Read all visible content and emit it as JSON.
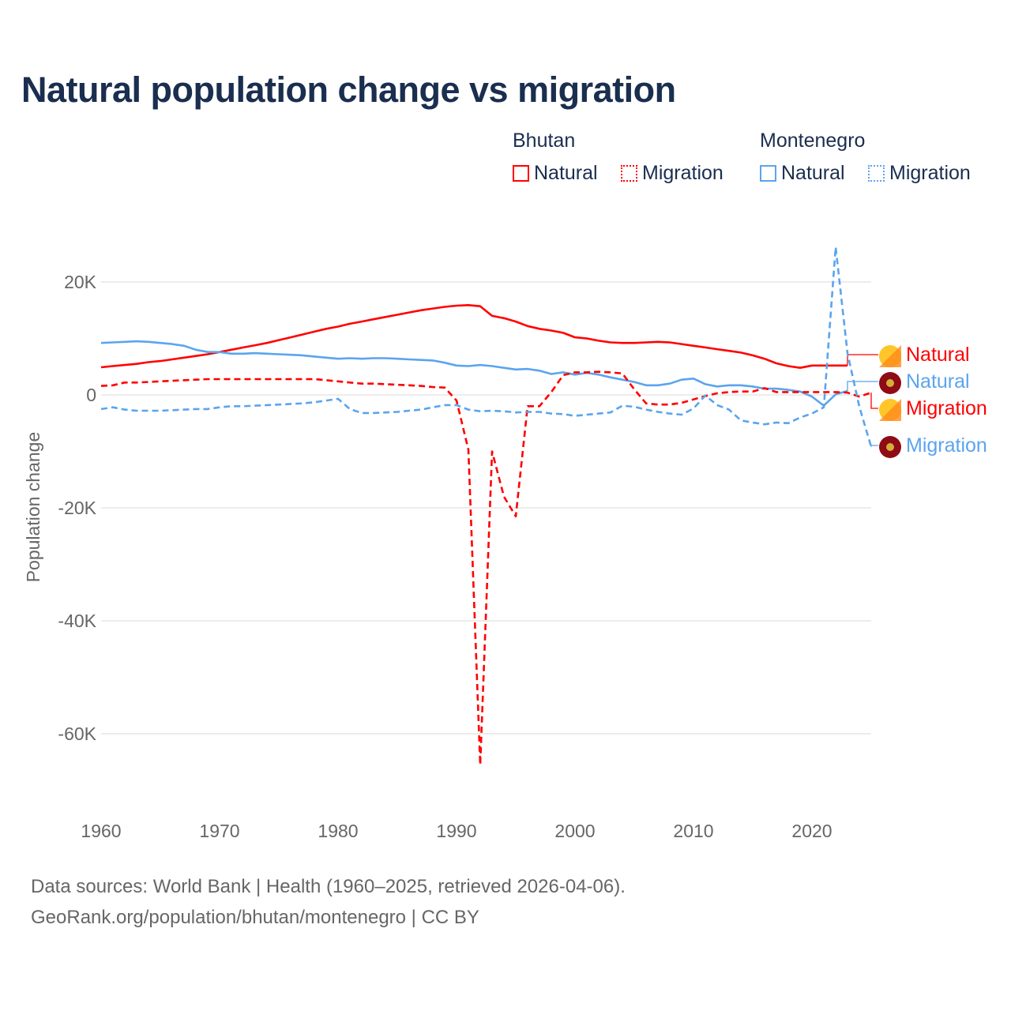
{
  "chart_data": {
    "type": "line",
    "title": "Natural population change vs migration",
    "ylabel": "Population change",
    "xlabel": "",
    "xlim": [
      1960,
      2025
    ],
    "ylim": [
      -65.5,
      26.5
    ],
    "x_ticks": [
      {
        "v": 1960,
        "label": "1960"
      },
      {
        "v": 1970,
        "label": "1970"
      },
      {
        "v": 1980,
        "label": "1980"
      },
      {
        "v": 1990,
        "label": "1990"
      },
      {
        "v": 2000,
        "label": "2000"
      },
      {
        "v": 2010,
        "label": "2010"
      },
      {
        "v": 2020,
        "label": "2020"
      }
    ],
    "y_ticks": [
      {
        "v": 20,
        "label": "20K"
      },
      {
        "v": 0,
        "label": "0"
      },
      {
        "v": -20,
        "label": "-20K"
      },
      {
        "v": -40,
        "label": "-40K"
      },
      {
        "v": -60,
        "label": "-60K"
      }
    ],
    "grid": true,
    "units": "thousands",
    "start_year": 1960,
    "series": [
      {
        "name": "Bhutan Natural",
        "country": "Bhutan",
        "kind": "Natural",
        "label": "Natural",
        "color": "#ff0000",
        "dashed": false,
        "values": [
          4.9,
          5.1,
          5.3,
          5.5,
          5.8,
          6.0,
          6.3,
          6.6,
          6.9,
          7.2,
          7.6,
          8.0,
          8.4,
          8.8,
          9.2,
          9.7,
          10.2,
          10.7,
          11.2,
          11.7,
          12.1,
          12.6,
          13.0,
          13.4,
          13.8,
          14.2,
          14.6,
          15.0,
          15.3,
          15.6,
          15.8,
          15.9,
          15.7,
          14.0,
          13.6,
          13.0,
          12.2,
          11.7,
          11.4,
          11.0,
          10.2,
          10.0,
          9.6,
          9.3,
          9.2,
          9.2,
          9.3,
          9.4,
          9.3,
          9.0,
          8.7,
          8.4,
          8.1,
          7.8,
          7.5,
          7.0,
          6.4,
          5.6,
          5.1,
          4.8,
          5.2,
          5.2,
          5.2,
          5.2
        ]
      },
      {
        "name": "Montenegro Natural",
        "country": "Montenegro",
        "kind": "Natural",
        "label": "Natural",
        "color": "#5ba4ee",
        "dashed": false,
        "values": [
          9.2,
          9.3,
          9.4,
          9.5,
          9.4,
          9.2,
          9.0,
          8.7,
          8.0,
          7.6,
          7.6,
          7.3,
          7.3,
          7.4,
          7.3,
          7.2,
          7.1,
          7.0,
          6.8,
          6.6,
          6.4,
          6.5,
          6.4,
          6.5,
          6.5,
          6.4,
          6.3,
          6.2,
          6.1,
          5.7,
          5.2,
          5.1,
          5.3,
          5.1,
          4.8,
          4.5,
          4.6,
          4.3,
          3.7,
          4.0,
          3.6,
          3.9,
          3.6,
          3.1,
          2.7,
          2.3,
          1.7,
          1.7,
          2.0,
          2.7,
          2.9,
          1.9,
          1.5,
          1.7,
          1.7,
          1.5,
          1.1,
          1.1,
          0.9,
          0.6,
          -0.3,
          -1.9,
          0.1,
          0.7
        ]
      },
      {
        "name": "Bhutan Migration",
        "country": "Bhutan",
        "kind": "Migration",
        "label": "Migration",
        "color": "#ff0000",
        "dashed": true,
        "values": [
          1.6,
          1.7,
          2.2,
          2.2,
          2.3,
          2.4,
          2.5,
          2.6,
          2.7,
          2.8,
          2.8,
          2.8,
          2.8,
          2.8,
          2.8,
          2.8,
          2.8,
          2.8,
          2.8,
          2.6,
          2.4,
          2.2,
          2.0,
          2.0,
          1.9,
          1.8,
          1.7,
          1.6,
          1.4,
          1.3,
          -1.0,
          -9.7,
          -65.5,
          -10.0,
          -18.0,
          -21.5,
          -2.0,
          -2.0,
          0.5,
          3.5,
          4.0,
          4.0,
          4.1,
          4.0,
          3.8,
          1.0,
          -1.5,
          -1.7,
          -1.7,
          -1.4,
          -0.8,
          -0.2,
          0.3,
          0.5,
          0.6,
          0.6,
          1.2,
          0.5,
          0.5,
          0.5,
          0.5,
          0.5,
          0.5,
          0.4,
          -0.3,
          0.4
        ]
      },
      {
        "name": "Montenegro Migration",
        "country": "Montenegro",
        "kind": "Migration",
        "label": "Migration",
        "color": "#5ba4ee",
        "dashed": true,
        "values": [
          -2.5,
          -2.2,
          -2.6,
          -2.8,
          -2.8,
          -2.8,
          -2.7,
          -2.6,
          -2.5,
          -2.5,
          -2.2,
          -2.0,
          -2.0,
          -1.9,
          -1.8,
          -1.7,
          -1.6,
          -1.5,
          -1.3,
          -1.0,
          -0.7,
          -2.5,
          -3.2,
          -3.2,
          -3.1,
          -3.0,
          -2.8,
          -2.6,
          -2.2,
          -1.8,
          -1.8,
          -2.6,
          -2.9,
          -2.8,
          -2.9,
          -3.1,
          -3.0,
          -3.0,
          -3.3,
          -3.4,
          -3.7,
          -3.5,
          -3.3,
          -3.1,
          -1.9,
          -2.1,
          -2.6,
          -3.0,
          -3.3,
          -3.5,
          -2.4,
          -0.1,
          -1.8,
          -2.6,
          -4.5,
          -4.9,
          -5.2,
          -4.9,
          -5.0,
          -4.0,
          -3.3,
          -2.2,
          26.2,
          7.4,
          -2.1,
          -9.2
        ]
      }
    ],
    "legend": {
      "placement": "top-right",
      "groups": [
        {
          "country": "Bhutan",
          "items": [
            "Natural",
            "Migration"
          ]
        },
        {
          "country": "Montenegro",
          "items": [
            "Natural",
            "Migration"
          ]
        }
      ]
    }
  },
  "footer": {
    "line1": "Data sources: World Bank | Health (1960–2025, retrieved 2026-04-06).",
    "line2": "GeoRank.org/population/bhutan/montenegro | CC BY"
  },
  "icons": {
    "bhutan": "bhutan-flag-icon",
    "montenegro": "montenegro-flag-icon"
  }
}
